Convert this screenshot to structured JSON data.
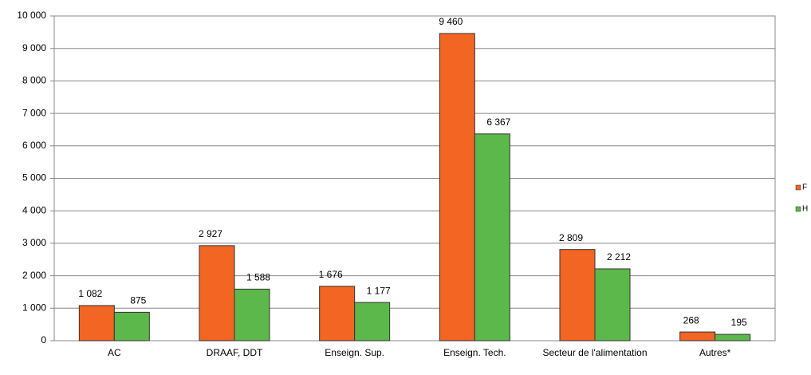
{
  "chart_data": {
    "type": "bar",
    "categories": [
      "AC",
      "DRAAF, DDT",
      "Enseign. Sup.",
      "Enseign. Tech.",
      "Secteur de l'alimentation",
      "Autres*"
    ],
    "series": [
      {
        "name": "F",
        "color": "#f26522",
        "values": [
          1082,
          2927,
          1676,
          9460,
          2809,
          268
        ],
        "value_labels": [
          "1 082",
          "2 927",
          "1 676",
          "9 460",
          "2 809",
          "268"
        ]
      },
      {
        "name": "H",
        "color": "#5cb84a",
        "values": [
          875,
          1588,
          1177,
          6367,
          2212,
          195
        ],
        "value_labels": [
          "875",
          "1 588",
          "1 177",
          "6 367",
          "2 212",
          "195"
        ]
      }
    ],
    "ylim": [
      0,
      10000
    ],
    "yticks": [
      0,
      {
        "value": 1000,
        "label": "1 000"
      },
      {
        "value": 2000,
        "label": "2 000"
      },
      {
        "value": 3000,
        "label": "3 000"
      },
      {
        "value": 4000,
        "label": "4 000"
      },
      {
        "value": 5000,
        "label": "5 000"
      },
      {
        "value": 6000,
        "label": "6 000"
      },
      {
        "value": 7000,
        "label": "7 000"
      },
      {
        "value": 8000,
        "label": "8 000"
      },
      {
        "value": 9000,
        "label": "9 000"
      },
      {
        "value": 10000,
        "label": "10 000"
      }
    ],
    "grid": true,
    "legend": "right"
  }
}
